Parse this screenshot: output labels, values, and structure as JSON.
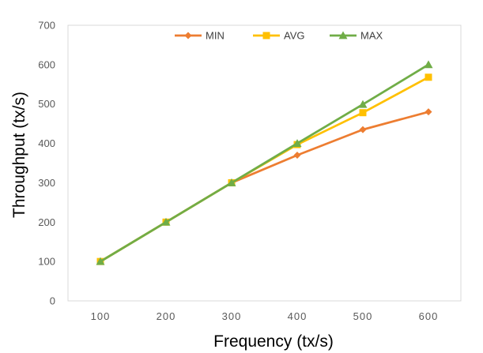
{
  "chart_data": {
    "type": "line",
    "title": "",
    "xlabel": "Frequency (tx/s)",
    "ylabel": "Throughput (tx/s)",
    "x": [
      100,
      200,
      300,
      400,
      500,
      600
    ],
    "x_tick_labels": [
      "100",
      "200",
      "300",
      "400",
      "500",
      "600"
    ],
    "ylim": [
      0,
      700
    ],
    "y_ticks": [
      0,
      100,
      200,
      300,
      400,
      500,
      600,
      700
    ],
    "grid": false,
    "legend_position": "top",
    "series": [
      {
        "name": "MIN",
        "marker": "diamond",
        "color": "#ED7D31",
        "values": [
          100,
          200,
          300,
          370,
          435,
          480
        ]
      },
      {
        "name": "AVG",
        "marker": "square",
        "color": "#FFC000",
        "values": [
          100,
          200,
          300,
          397,
          478,
          568
        ]
      },
      {
        "name": "MAX",
        "marker": "triangle",
        "color": "#70AD47",
        "values": [
          100,
          200,
          300,
          400,
          499,
          600
        ]
      }
    ]
  }
}
